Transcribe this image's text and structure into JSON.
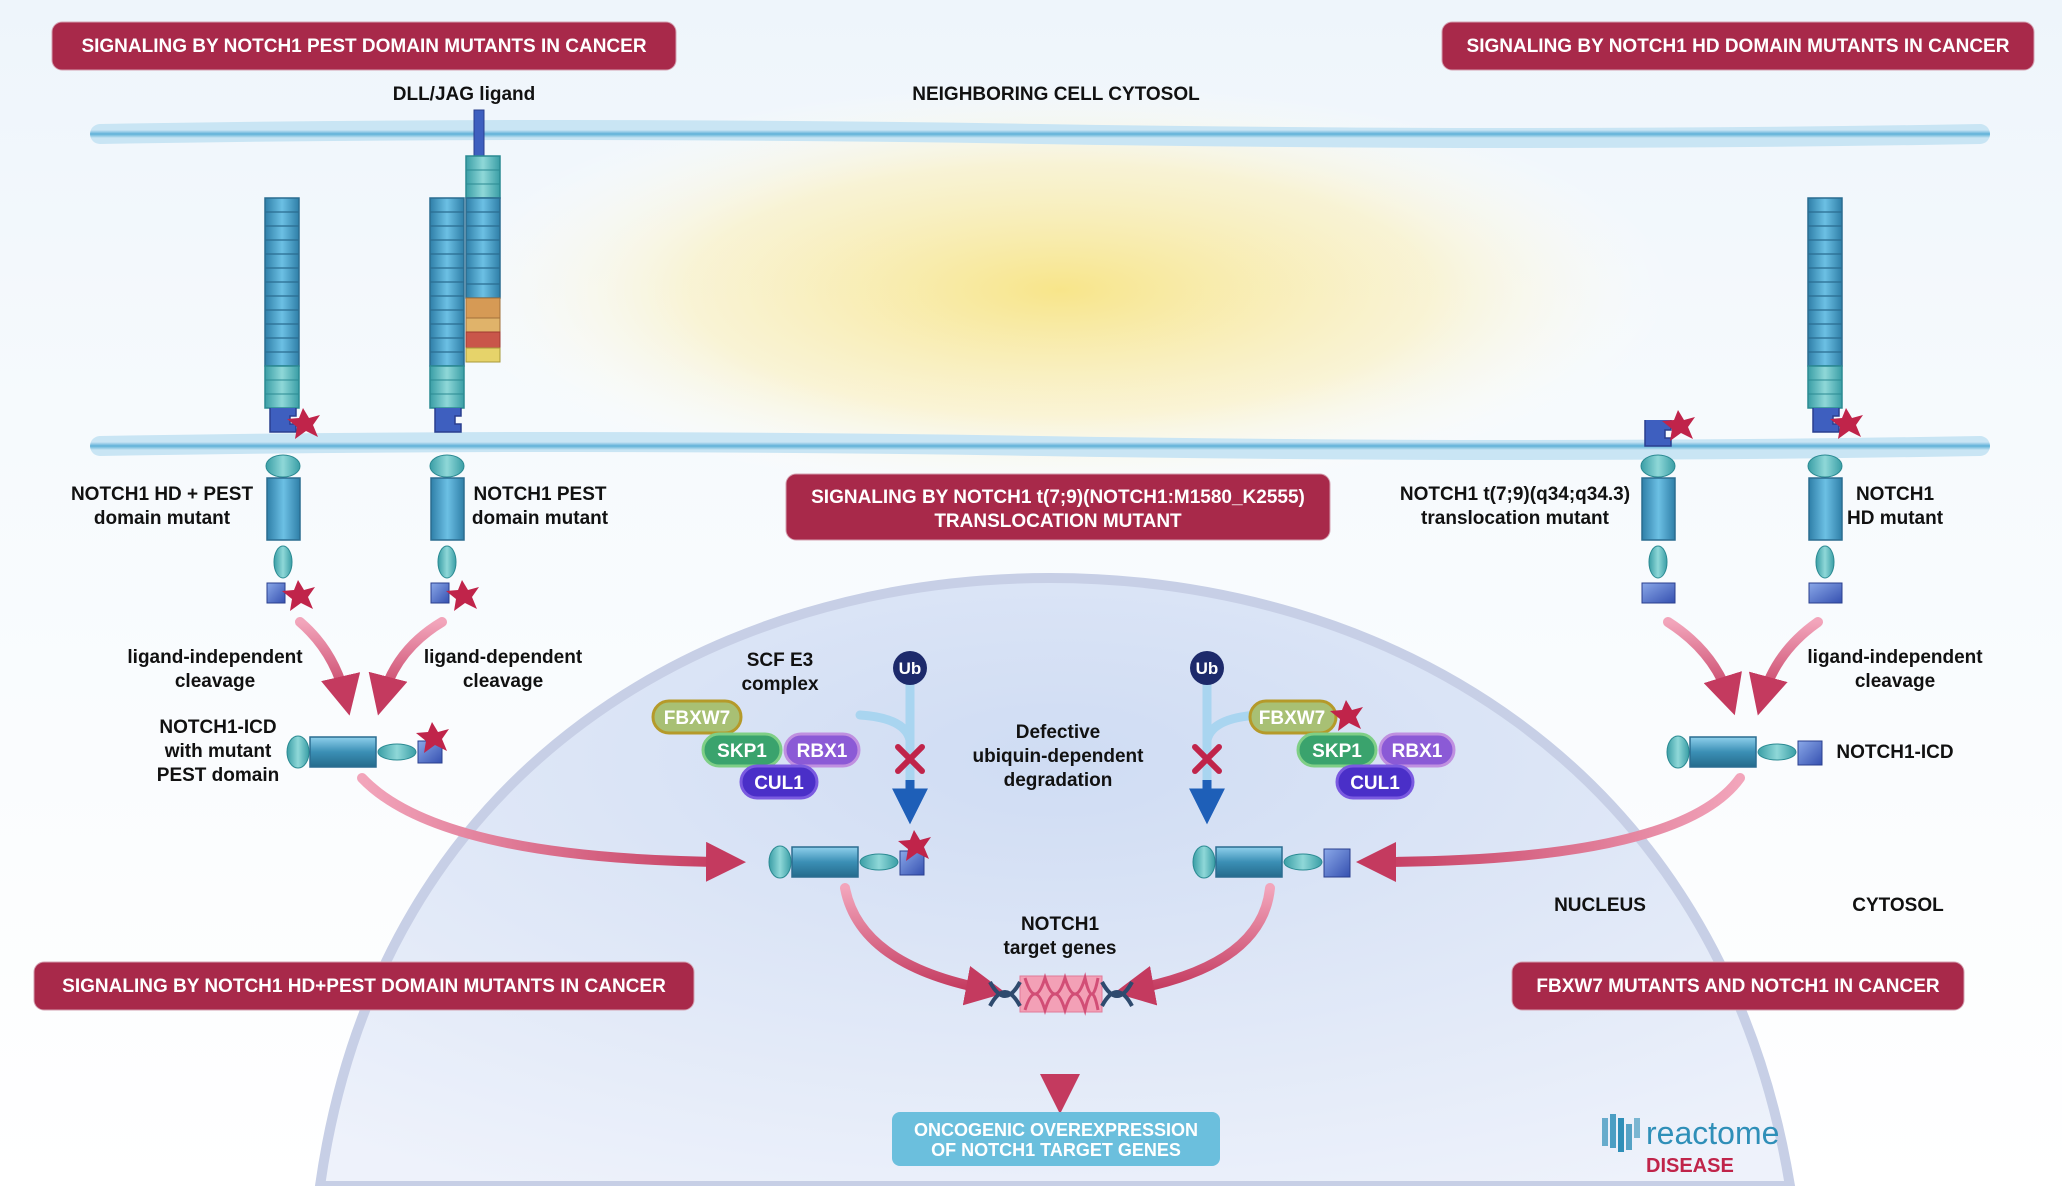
{
  "pathway_buttons": {
    "pest": "SIGNALING BY NOTCH1 PEST DOMAIN MUTANTS IN CANCER",
    "hd": "SIGNALING BY NOTCH1 HD DOMAIN MUTANTS IN CANCER",
    "transloc_line1": "SIGNALING BY NOTCH1 t(7;9)(NOTCH1:M1580_K2555)",
    "transloc_line2": "TRANSLOCATION MUTANT",
    "hd_pest": "SIGNALING BY NOTCH1 HD+PEST DOMAIN MUTANTS IN CANCER",
    "fbxw7": "FBXW7 MUTANTS AND NOTCH1 IN CANCER"
  },
  "outcome_button": {
    "line1": "ONCOGENIC OVEREXPRESSION",
    "line2": "OF NOTCH1 TARGET GENES"
  },
  "labels": {
    "ligand": "DLL/JAG ligand",
    "neighboring_cytosol": "NEIGHBORING CELL CYTOSOL",
    "hd_pest_mutant_1": "NOTCH1 HD + PEST",
    "hd_pest_mutant_2": "domain mutant",
    "pest_mutant_1": "NOTCH1 PEST",
    "pest_mutant_2": "domain mutant",
    "transloc_mutant_1": "NOTCH1 t(7;9)(q34;q34.3)",
    "transloc_mutant_2": "translocation mutant",
    "hd_mutant_1": "NOTCH1",
    "hd_mutant_2": "HD mutant",
    "lig_indep_1": "ligand-independent",
    "lig_indep_2": "cleavage",
    "lig_dep_1": "ligand-dependent",
    "lig_dep_2": "cleavage",
    "lig_indep_right_1": "ligand-independent",
    "lig_indep_right_2": "cleavage",
    "icd_mut_1": "NOTCH1-ICD",
    "icd_mut_2": "with mutant",
    "icd_mut_3": "PEST domain",
    "icd_right": "NOTCH1-ICD",
    "scf_1": "SCF E3",
    "scf_2": "complex",
    "defective_1": "Defective",
    "defective_2": "ubiquin-dependent",
    "defective_3": "degradation",
    "target_1": "NOTCH1",
    "target_2": "target genes",
    "nucleus": "NUCLEUS",
    "cytosol": "CYTOSOL"
  },
  "proteins": {
    "fbxw7": "FBXW7",
    "skp1": "SKP1",
    "rbx1": "RBX1",
    "cul1": "CUL1",
    "ub": "Ub"
  },
  "logo": {
    "brand": "reactome",
    "sub": "DISEASE"
  },
  "colors": {
    "pathway_button": "#a8294a",
    "outcome_button": "#6bbfdd",
    "arrow": "#c43a5f",
    "mutation_star": "#c0244a",
    "receptor": "#3b8fb5",
    "fbxw7": "#a8c074",
    "skp1": "#3aa36d",
    "rbx1": "#8b5ad6",
    "cul1": "#4a2fc8",
    "ub": "#1d2a6b"
  }
}
